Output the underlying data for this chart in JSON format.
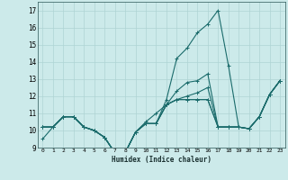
{
  "xlabel": "Humidex (Indice chaleur)",
  "xlim": [
    -0.5,
    23.5
  ],
  "ylim": [
    9,
    17.5
  ],
  "yticks": [
    9,
    10,
    11,
    12,
    13,
    14,
    15,
    16,
    17
  ],
  "xtick_labels": [
    "0",
    "1",
    "2",
    "3",
    "4",
    "5",
    "6",
    "7",
    "8",
    "9",
    "10",
    "11",
    "12",
    "13",
    "14",
    "15",
    "16",
    "17",
    "18",
    "19",
    "20",
    "21",
    "22",
    "23"
  ],
  "background_color": "#cceaea",
  "grid_color": "#aed4d4",
  "line_color": "#1a6b6b",
  "line_width": 0.8,
  "marker": "+",
  "marker_size": 3,
  "series": [
    [
      9.5,
      10.2,
      10.8,
      10.8,
      10.2,
      10.0,
      9.6,
      8.7,
      8.7,
      9.9,
      10.4,
      10.4,
      11.8,
      14.2,
      14.8,
      15.7,
      16.2,
      17.0,
      13.8,
      10.2,
      10.1,
      10.8,
      12.1,
      12.9
    ],
    [
      10.2,
      10.2,
      10.8,
      10.8,
      10.2,
      10.0,
      9.6,
      8.7,
      8.7,
      9.9,
      10.5,
      11.0,
      11.5,
      11.8,
      12.0,
      12.2,
      12.5,
      10.2,
      10.2,
      10.2,
      10.1,
      10.8,
      12.1,
      12.9
    ],
    [
      10.2,
      10.2,
      10.8,
      10.8,
      10.2,
      10.0,
      9.6,
      8.7,
      8.7,
      9.9,
      10.4,
      10.4,
      11.5,
      12.3,
      12.8,
      12.9,
      13.3,
      10.2,
      10.2,
      10.2,
      10.1,
      10.8,
      12.1,
      12.9
    ],
    [
      10.2,
      10.2,
      10.8,
      10.8,
      10.2,
      10.0,
      9.6,
      8.7,
      8.7,
      9.9,
      10.4,
      10.4,
      11.5,
      11.8,
      11.8,
      11.8,
      11.8,
      10.2,
      10.2,
      10.2,
      10.1,
      10.8,
      12.1,
      12.9
    ],
    [
      10.2,
      10.2,
      10.8,
      10.8,
      10.2,
      10.0,
      9.6,
      8.7,
      8.7,
      9.9,
      10.4,
      10.4,
      11.5,
      11.8,
      11.8,
      11.8,
      11.8,
      10.2,
      10.2,
      10.2,
      10.1,
      10.8,
      12.1,
      12.9
    ]
  ]
}
